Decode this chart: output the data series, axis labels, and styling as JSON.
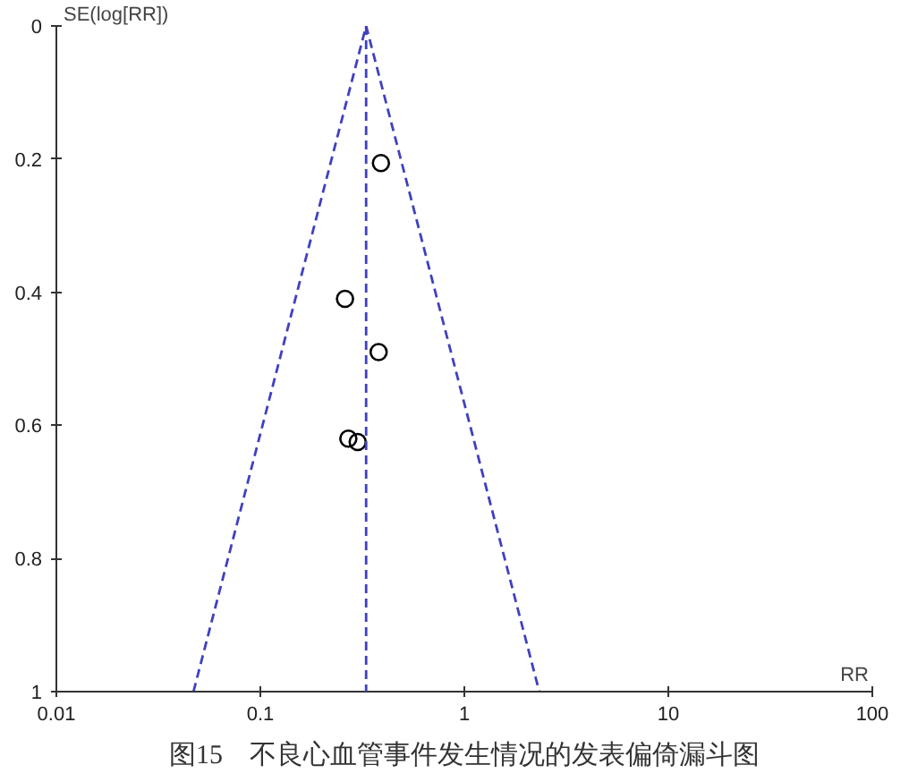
{
  "chart_data": {
    "type": "scatter",
    "xlabel": "RR",
    "ylabel": "SE(log[RR])",
    "log": "x",
    "xlim": [
      0.01,
      100
    ],
    "ylim": [
      1,
      0
    ],
    "xticks": [
      0.01,
      0.1,
      1,
      10,
      100
    ],
    "yticks": [
      0,
      0.2,
      0.4,
      0.6,
      0.8,
      1
    ],
    "series": [
      {
        "color": "#000000",
        "marker": "circle",
        "x": [
          0.39,
          0.26,
          0.38,
          0.27,
          0.3
        ],
        "values": [
          0.206,
          0.41,
          0.49,
          0.62,
          0.625
        ]
      },
      {
        "type": "line",
        "color": "#4040c0",
        "line_style": "dashed",
        "marker": "none",
        "x": [
          0.047,
          0.33,
          2.33
        ],
        "values": [
          1,
          0,
          1
        ]
      }
    ],
    "ref_lines": [
      {
        "axis": "x",
        "value": 0.33,
        "color": "#4040c0",
        "line_style": "dashed"
      }
    ],
    "annotations": [
      "图15　不良心血管事件发生情况的发表偏倚漏斗图"
    ]
  }
}
